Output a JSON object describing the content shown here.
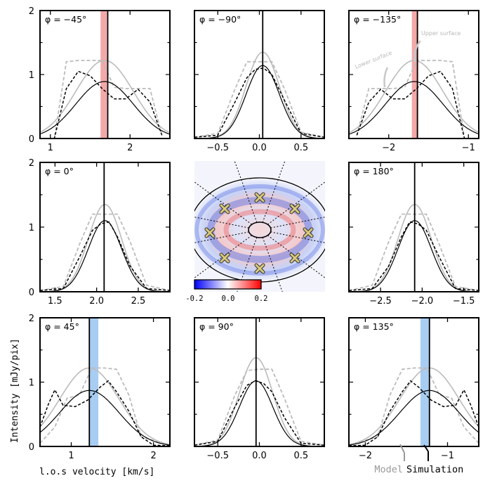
{
  "figure": {
    "ylabel": "Intensity [mJy/pix]",
    "xlabel": "l.o.s velocity [km/s]",
    "legend_model": "Model",
    "legend_simulation": "Simulation",
    "annotation_upper": "Upper surface",
    "annotation_lower": "Lower surface",
    "colorbar_ticks": [
      "-0.2",
      "0.0",
      "0.2"
    ],
    "colors": {
      "simulation": "#000000",
      "model": "#bbbbbb",
      "red_band": "#f4a8a8",
      "blue_band": "#a8cdf2"
    }
  },
  "chart_data": [
    {
      "type": "line",
      "title": "φ = −45°",
      "center": 1.68,
      "sigma": 0.36,
      "amp_sim": 0.89,
      "amp_model": 1.22,
      "xlim": [
        0.87,
        2.5
      ],
      "xticks": [
        1,
        2
      ],
      "xtick_labels": [
        "1",
        "2"
      ],
      "ylim": [
        0,
        2
      ],
      "yticks": [
        "0",
        "1",
        "2"
      ],
      "band": {
        "color": "red",
        "x": [
          1.63,
          1.71
        ]
      },
      "vline": 1.72,
      "annotate": false,
      "series": [
        {
          "name": "Simulation",
          "style": "dashed",
          "x": [
            0.87,
            1.05,
            1.2,
            1.35,
            1.5,
            1.65,
            1.8,
            1.95,
            2.1,
            2.25,
            2.4
          ],
          "y": [
            0,
            0,
            0.78,
            1.05,
            0.98,
            0.78,
            0.62,
            0.62,
            0.77,
            0.57,
            0.05
          ]
        },
        {
          "name": "Simulation fit",
          "style": "solid",
          "gaussian": true
        },
        {
          "name": "Model",
          "style": "dashed",
          "x": [
            0.87,
            1.05,
            1.2,
            1.35,
            1.5,
            1.65,
            1.8,
            1.95,
            2.1,
            2.25,
            2.4
          ],
          "y": [
            0,
            0,
            1.2,
            1.22,
            1.22,
            1.22,
            0.8,
            0.78,
            0.78,
            0.78,
            0.05
          ]
        },
        {
          "name": "Model fit",
          "style": "solid",
          "gaussian": true
        }
      ]
    },
    {
      "type": "line",
      "title": "φ = −90°",
      "center": 0.04,
      "sigma": 0.2,
      "amp_sim": 1.14,
      "amp_model": 1.35,
      "xlim": [
        -0.78,
        0.78
      ],
      "xticks": [
        -0.5,
        0,
        0.5
      ],
      "xtick_labels": [
        "−0.5",
        "0.0",
        "0.5"
      ],
      "ylim": [
        0,
        2
      ],
      "yticks": [],
      "band": null,
      "vline": 0.04,
      "annotate": false,
      "series": [
        {
          "name": "Simulation",
          "style": "dashed",
          "x": [
            -0.78,
            -0.5,
            -0.3,
            -0.15,
            -0.05,
            0.05,
            0.15,
            0.3,
            0.5,
            0.78
          ],
          "y": [
            0.02,
            0.05,
            0.55,
            0.95,
            1.08,
            1.1,
            1.0,
            0.6,
            0.08,
            0.02
          ]
        },
        {
          "name": "Simulation fit",
          "style": "solid",
          "gaussian": true
        },
        {
          "name": "Model",
          "style": "dashed",
          "x": [
            -0.78,
            -0.5,
            -0.3,
            -0.15,
            0,
            0.15,
            0.3,
            0.5,
            0.78
          ],
          "y": [
            0.02,
            0.08,
            0.75,
            1.2,
            1.2,
            1.2,
            0.78,
            0.1,
            0.02
          ]
        },
        {
          "name": "Model fit",
          "style": "solid",
          "gaussian": true
        }
      ]
    },
    {
      "type": "line",
      "title": "φ = −135°",
      "center": -1.68,
      "sigma": 0.36,
      "amp_sim": 0.89,
      "amp_model": 1.22,
      "xlim": [
        -2.5,
        -0.87
      ],
      "xticks": [
        -2,
        -1
      ],
      "xtick_labels": [
        "−2",
        "−1"
      ],
      "ylim": [
        0,
        2
      ],
      "yticks": [],
      "band": {
        "color": "red",
        "x": [
          -1.71,
          -1.63
        ]
      },
      "vline": -1.64,
      "annotate": true,
      "series": [
        {
          "name": "Simulation",
          "style": "dashed",
          "x": [
            -2.4,
            -2.25,
            -2.1,
            -1.95,
            -1.8,
            -1.65,
            -1.5,
            -1.35,
            -1.2,
            -1.05,
            -0.87
          ],
          "y": [
            0.05,
            0.57,
            0.77,
            0.62,
            0.62,
            0.78,
            0.98,
            1.05,
            0.78,
            0,
            0
          ]
        },
        {
          "name": "Simulation fit",
          "style": "solid",
          "gaussian": true
        },
        {
          "name": "Model",
          "style": "dashed",
          "x": [
            -2.4,
            -2.25,
            -2.1,
            -1.95,
            -1.8,
            -1.65,
            -1.5,
            -1.35,
            -1.2,
            -1.05,
            -0.87
          ],
          "y": [
            0.05,
            0.78,
            0.78,
            0.78,
            0.8,
            1.22,
            1.22,
            1.22,
            1.2,
            0,
            0
          ]
        },
        {
          "name": "Model fit",
          "style": "solid",
          "gaussian": true
        }
      ]
    },
    {
      "type": "line",
      "title": "φ = 0°",
      "center": 2.1,
      "sigma": 0.2,
      "amp_sim": 1.1,
      "amp_model": 1.35,
      "xlim": [
        1.32,
        2.88
      ],
      "xticks": [
        1.5,
        2.0,
        2.5
      ],
      "xtick_labels": [
        "1.5",
        "2.0",
        "2.5"
      ],
      "ylim": [
        0,
        2
      ],
      "yticks": [
        "0",
        "1",
        "2"
      ],
      "band": null,
      "vline": 2.09,
      "annotate": false,
      "series": [
        {
          "name": "Simulation",
          "style": "dashed",
          "x": [
            1.32,
            1.6,
            1.8,
            1.95,
            2.05,
            2.15,
            2.25,
            2.4,
            2.6,
            2.88
          ],
          "y": [
            0.02,
            0.05,
            0.55,
            0.95,
            1.05,
            1.08,
            0.85,
            0.4,
            0.05,
            0.02
          ]
        },
        {
          "name": "Simulation fit",
          "style": "solid",
          "gaussian": true
        },
        {
          "name": "Model",
          "style": "dashed",
          "x": [
            1.32,
            1.6,
            1.8,
            1.95,
            2.1,
            2.25,
            2.4,
            2.6,
            2.88
          ],
          "y": [
            0.02,
            0.08,
            0.75,
            1.2,
            1.2,
            1.2,
            0.78,
            0.1,
            0.02
          ]
        },
        {
          "name": "Model fit",
          "style": "solid",
          "gaussian": true
        }
      ]
    },
    {
      "type": "line",
      "title": "φ = 180°",
      "center": -2.09,
      "sigma": 0.2,
      "amp_sim": 1.1,
      "amp_model": 1.35,
      "xlim": [
        -2.88,
        -1.32
      ],
      "xticks": [
        -2.5,
        -2.0,
        -1.5
      ],
      "xtick_labels": [
        "−2.5",
        "−2.0",
        "−1.5"
      ],
      "ylim": [
        0,
        2
      ],
      "yticks": [],
      "band": null,
      "vline": -2.09,
      "annotate": false,
      "series": [
        {
          "name": "Simulation",
          "style": "dashed",
          "x": [
            -2.88,
            -2.6,
            -2.4,
            -2.25,
            -2.15,
            -2.05,
            -1.95,
            -1.8,
            -1.6,
            -1.32
          ],
          "y": [
            0.02,
            0.05,
            0.4,
            0.85,
            1.08,
            1.05,
            0.95,
            0.55,
            0.05,
            0.02
          ]
        },
        {
          "name": "Simulation fit",
          "style": "solid",
          "gaussian": true
        },
        {
          "name": "Model",
          "style": "dashed",
          "x": [
            -2.88,
            -2.6,
            -2.4,
            -2.25,
            -2.1,
            -1.95,
            -1.8,
            -1.6,
            -1.32
          ],
          "y": [
            0.02,
            0.1,
            0.78,
            1.2,
            1.2,
            1.2,
            0.75,
            0.08,
            0.02
          ]
        },
        {
          "name": "Model fit",
          "style": "solid",
          "gaussian": true
        }
      ]
    },
    {
      "type": "line",
      "title": "φ = 45°",
      "center": 1.22,
      "sigma": 0.36,
      "amp_sim": 0.87,
      "amp_model": 1.22,
      "xlim": [
        0.62,
        2.2
      ],
      "xticks": [
        1,
        2
      ],
      "xtick_labels": [
        "1",
        "2"
      ],
      "ylim": [
        0,
        2
      ],
      "yticks": [
        "0",
        "1",
        "2"
      ],
      "band": {
        "color": "blue",
        "x": [
          1.22,
          1.33
        ]
      },
      "vline": 1.22,
      "annotate": false,
      "series": [
        {
          "name": "Simulation",
          "style": "dashed",
          "x": [
            0.62,
            0.72,
            0.8,
            0.9,
            1.05,
            1.2,
            1.35,
            1.45,
            1.55,
            1.7,
            1.85,
            2.0,
            2.2
          ],
          "y": [
            0.3,
            0.65,
            0.88,
            0.64,
            0.62,
            0.72,
            0.92,
            1.02,
            0.85,
            0.55,
            0.15,
            0.02,
            0.01
          ]
        },
        {
          "name": "Simulation fit",
          "style": "solid",
          "gaussian": true
        },
        {
          "name": "Model",
          "style": "dashed",
          "x": [
            0.62,
            0.8,
            0.95,
            1.1,
            1.25,
            1.4,
            1.55,
            1.7,
            1.85,
            2.2
          ],
          "y": [
            0.05,
            0.3,
            0.75,
            0.8,
            1.22,
            1.22,
            1.2,
            0.8,
            0.15,
            0.02
          ]
        },
        {
          "name": "Model fit",
          "style": "solid",
          "gaussian": true
        }
      ]
    },
    {
      "type": "line",
      "title": "φ = 90°",
      "center": -0.04,
      "sigma": 0.2,
      "amp_sim": 1.02,
      "amp_model": 1.38,
      "xlim": [
        -0.78,
        0.78
      ],
      "xticks": [
        -0.5,
        0,
        0.5
      ],
      "xtick_labels": [
        "−0.5",
        "0.0",
        "0.5"
      ],
      "ylim": [
        0,
        2
      ],
      "yticks": [],
      "band": null,
      "vline": -0.04,
      "annotate": false,
      "series": [
        {
          "name": "Simulation",
          "style": "dashed",
          "x": [
            -0.78,
            -0.5,
            -0.3,
            -0.15,
            -0.05,
            0.05,
            0.15,
            0.3,
            0.5,
            0.78
          ],
          "y": [
            0.02,
            0.08,
            0.6,
            0.95,
            1.02,
            0.98,
            0.85,
            0.45,
            0.05,
            0.02
          ]
        },
        {
          "name": "Simulation fit",
          "style": "solid",
          "gaussian": true
        },
        {
          "name": "Model",
          "style": "dashed",
          "x": [
            -0.78,
            -0.5,
            -0.3,
            -0.15,
            0,
            0.15,
            0.3,
            0.5,
            0.78
          ],
          "y": [
            0.02,
            0.1,
            0.78,
            1.18,
            1.2,
            1.2,
            0.75,
            0.08,
            0.02
          ]
        },
        {
          "name": "Model fit",
          "style": "solid",
          "gaussian": true
        }
      ]
    },
    {
      "type": "line",
      "title": "φ = 135°",
      "center": -1.22,
      "sigma": 0.36,
      "amp_sim": 0.87,
      "amp_model": 1.22,
      "xlim": [
        -2.2,
        -0.62
      ],
      "xticks": [
        -2,
        -1
      ],
      "xtick_labels": [
        "−2",
        "−1"
      ],
      "ylim": [
        0,
        2
      ],
      "yticks": [],
      "band": {
        "color": "blue",
        "x": [
          -1.33,
          -1.22
        ]
      },
      "vline": -1.22,
      "annotate": false,
      "series": [
        {
          "name": "Simulation",
          "style": "dashed",
          "x": [
            -2.2,
            -2.0,
            -1.85,
            -1.7,
            -1.55,
            -1.45,
            -1.35,
            -1.2,
            -1.05,
            -0.9,
            -0.8,
            -0.72,
            -0.62
          ],
          "y": [
            0.01,
            0.02,
            0.15,
            0.55,
            0.85,
            1.02,
            0.92,
            0.72,
            0.62,
            0.64,
            0.88,
            0.65,
            0.3
          ]
        },
        {
          "name": "Simulation fit",
          "style": "solid",
          "gaussian": true
        },
        {
          "name": "Model",
          "style": "dashed",
          "x": [
            -2.2,
            -1.85,
            -1.7,
            -1.55,
            -1.4,
            -1.25,
            -1.1,
            -0.95,
            -0.8,
            -0.62
          ],
          "y": [
            0.02,
            0.15,
            0.8,
            1.2,
            1.22,
            1.22,
            0.8,
            0.75,
            0.3,
            0.05
          ]
        },
        {
          "name": "Model fit",
          "style": "solid",
          "gaussian": true
        }
      ]
    }
  ]
}
